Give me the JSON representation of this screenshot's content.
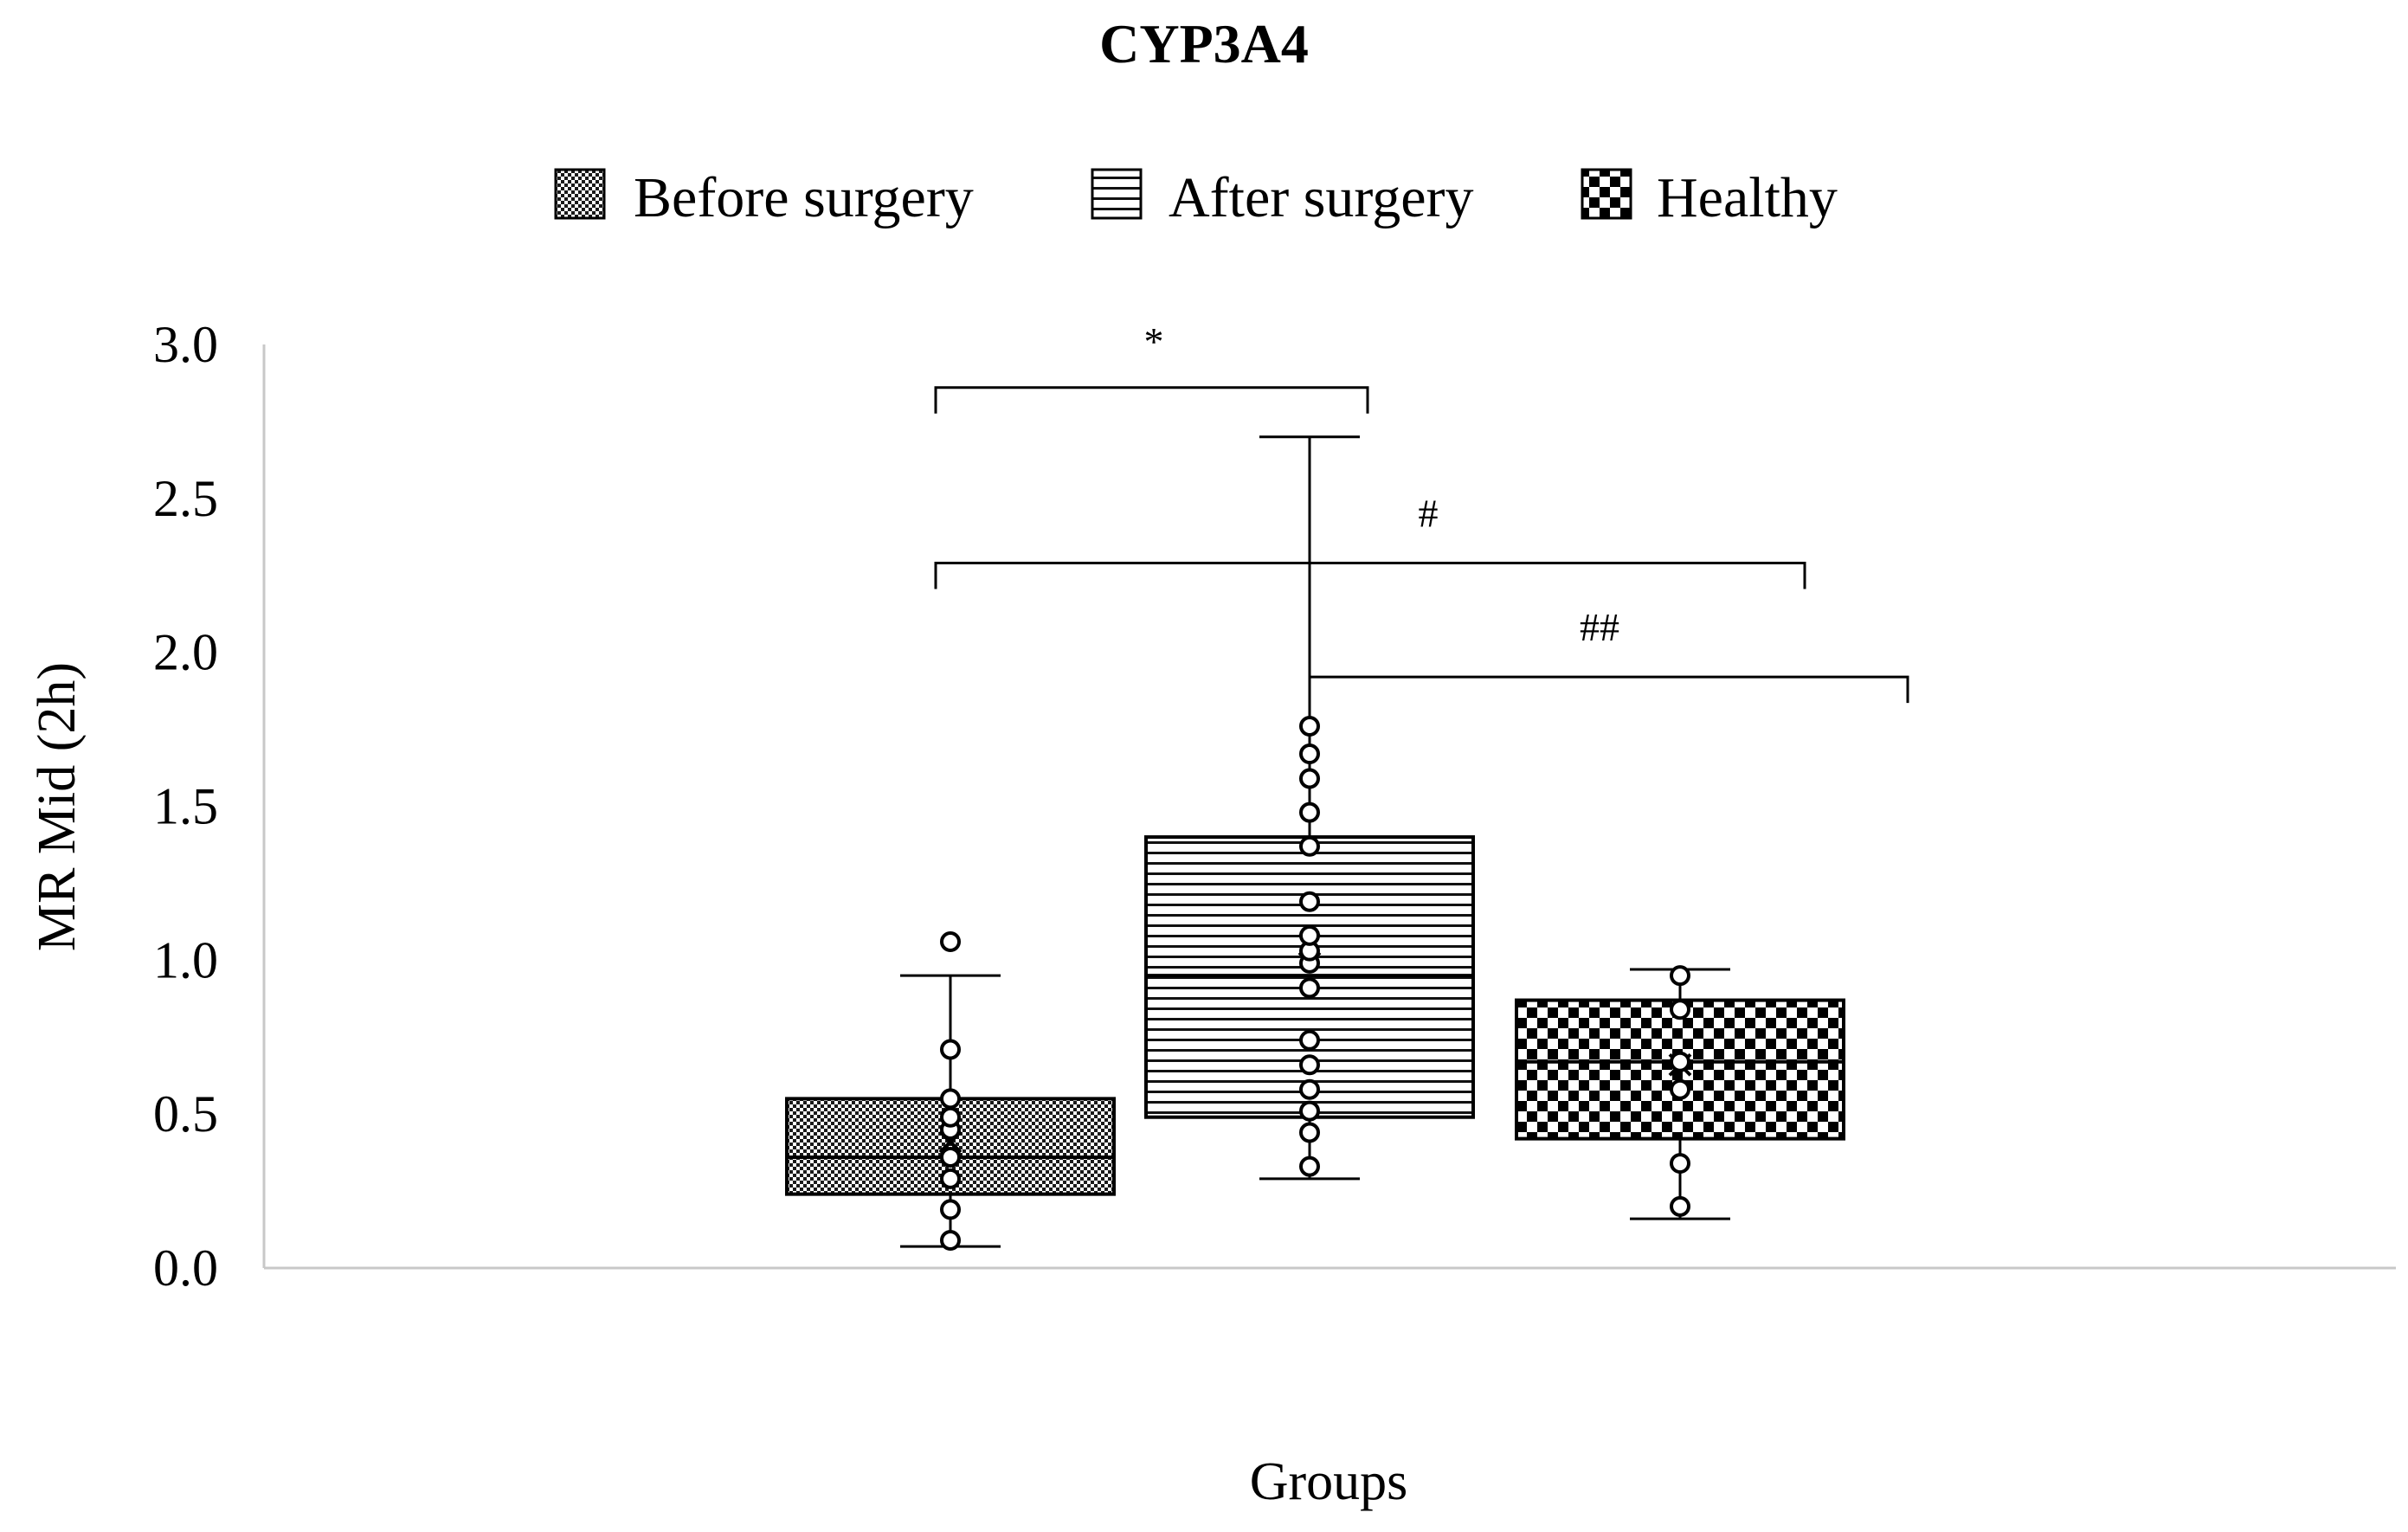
{
  "chart_data": {
    "type": "box",
    "title": "CYP3A4",
    "xlabel": "Groups",
    "ylabel": "MR Mid (2h)",
    "ylim": [
      0,
      3
    ],
    "yticks": [
      "0.0",
      "0.5",
      "1.0",
      "1.5",
      "2.0",
      "2.5",
      "3.0"
    ],
    "grid": false,
    "legend_position": "top",
    "series": [
      {
        "name": "Before surgery",
        "pattern": "fine-checker",
        "whisker_low": 0.07,
        "q1": 0.24,
        "median": 0.36,
        "mean": 0.41,
        "q3": 0.55,
        "whisker_high": 0.95,
        "points": [
          0.09,
          0.19,
          0.29,
          0.36,
          0.45,
          0.49,
          0.55,
          0.71,
          1.06
        ]
      },
      {
        "name": "After surgery",
        "pattern": "horizontal-lines",
        "whisker_low": 0.29,
        "q1": 0.49,
        "median": 0.95,
        "mean": 1.05,
        "q3": 1.4,
        "whisker_high": 2.7,
        "points": [
          0.33,
          0.44,
          0.51,
          0.58,
          0.66,
          0.74,
          0.91,
          0.99,
          1.03,
          1.08,
          1.19,
          1.37,
          1.48,
          1.59,
          1.67,
          1.76
        ]
      },
      {
        "name": "Healthy",
        "pattern": "coarse-checker",
        "whisker_low": 0.16,
        "q1": 0.42,
        "median": 0.67,
        "mean": 0.66,
        "q3": 0.87,
        "whisker_high": 0.97,
        "points": [
          0.2,
          0.34,
          0.58,
          0.67,
          0.84,
          0.95
        ]
      }
    ],
    "significance": [
      {
        "label": "*",
        "from": "Before surgery",
        "to": "After surgery",
        "y": 2.86
      },
      {
        "label": "#",
        "from": "Before surgery",
        "to": "Healthy",
        "y": 2.29
      },
      {
        "label": "##",
        "from": "After surgery",
        "to": "Healthy",
        "y": 1.92
      }
    ]
  }
}
